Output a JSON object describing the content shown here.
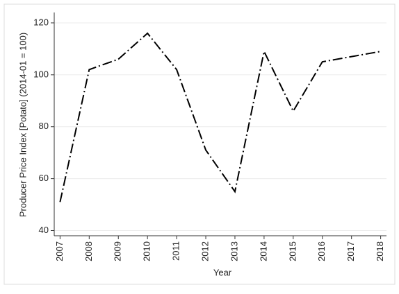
{
  "chart_data": {
    "type": "line",
    "x_label": "Year",
    "y_label": "Producer Price Index [Potato] (2014-01 = 100)",
    "x": [
      2007,
      2008,
      2009,
      2010,
      2011,
      2012,
      2013,
      2014,
      2015,
      2016,
      2017,
      2018
    ],
    "series": [
      {
        "color": "#000000",
        "values": [
          51,
          102,
          106,
          116,
          102,
          71,
          55,
          109,
          86,
          105,
          107,
          109
        ]
      }
    ],
    "xlim": [
      2006.8,
      2018.2
    ],
    "xticks": [
      2007,
      2008,
      2009,
      2010,
      2011,
      2012,
      2013,
      2014,
      2015,
      2016,
      2017,
      2018
    ],
    "ylim": [
      38,
      124
    ],
    "yticks": [
      40,
      60,
      80,
      100,
      120
    ],
    "grid": true
  }
}
